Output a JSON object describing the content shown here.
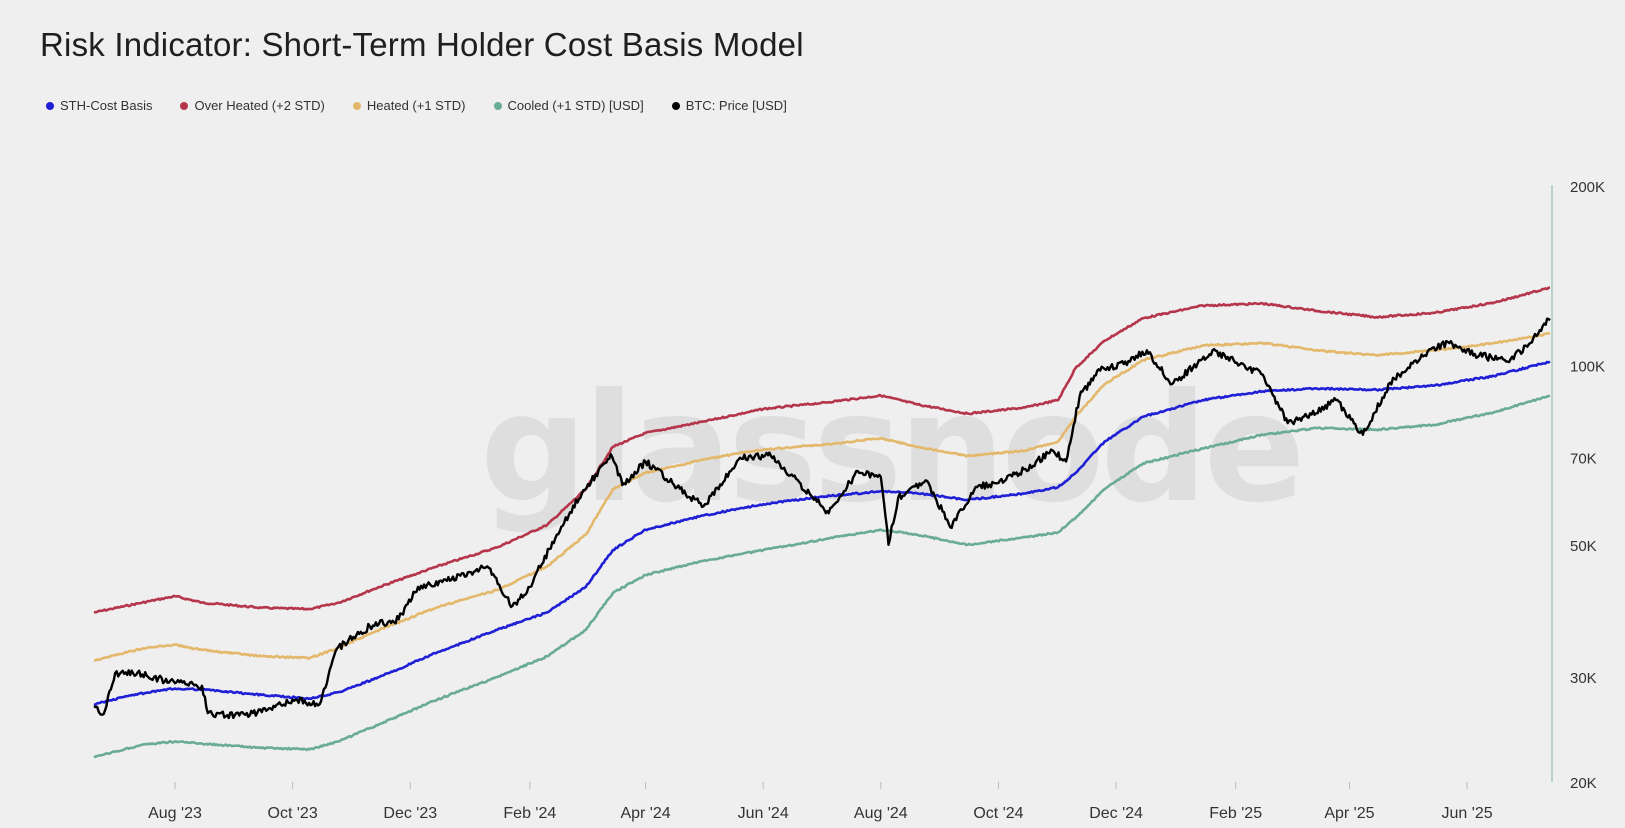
{
  "title": "Risk Indicator: Short-Term Holder Cost Basis Model",
  "watermark": "glassnode",
  "legend": [
    {
      "label": "STH-Cost Basis",
      "color": "#1f1fd6"
    },
    {
      "label": "Over Heated (+2 STD)",
      "color": "#b5354a"
    },
    {
      "label": "Heated (+1 STD)",
      "color": "#e3b86a"
    },
    {
      "label": "Cooled (+1 STD) [USD]",
      "color": "#6aab98"
    },
    {
      "label": "BTC: Price [USD]",
      "color": "#000000"
    }
  ],
  "chart_data": {
    "type": "line",
    "title": "Risk Indicator: Short-Term Holder Cost Basis Model",
    "xlabel": "",
    "ylabel": "",
    "y_scale": "log",
    "ylim": [
      20000,
      200000
    ],
    "xlim": [
      "2023-06-20",
      "2025-07-14"
    ],
    "x_ticks": [
      {
        "date": "2023-08-01",
        "label": "Aug '23"
      },
      {
        "date": "2023-10-01",
        "label": "Oct '23"
      },
      {
        "date": "2023-12-01",
        "label": "Dec '23"
      },
      {
        "date": "2024-02-01",
        "label": "Feb '24"
      },
      {
        "date": "2024-04-01",
        "label": "Apr '24"
      },
      {
        "date": "2024-06-01",
        "label": "Jun '24"
      },
      {
        "date": "2024-08-01",
        "label": "Aug '24"
      },
      {
        "date": "2024-10-01",
        "label": "Oct '24"
      },
      {
        "date": "2024-12-01",
        "label": "Dec '24"
      },
      {
        "date": "2025-02-01",
        "label": "Feb '25"
      },
      {
        "date": "2025-04-01",
        "label": "Apr '25"
      },
      {
        "date": "2025-06-01",
        "label": "Jun '25"
      }
    ],
    "y_ticks": [
      {
        "value": 20000,
        "label": "20K"
      },
      {
        "value": 30000,
        "label": "30K"
      },
      {
        "value": 50000,
        "label": "50K"
      },
      {
        "value": 70000,
        "label": "70K"
      },
      {
        "value": 100000,
        "label": "100K"
      },
      {
        "value": 200000,
        "label": "200K"
      }
    ],
    "series": [
      {
        "name": "Over Heated (+2 STD)",
        "color": "#b5354a",
        "points": [
          [
            "2023-06-20",
            38500
          ],
          [
            "2023-07-15",
            40000
          ],
          [
            "2023-08-01",
            41000
          ],
          [
            "2023-08-15",
            40000
          ],
          [
            "2023-09-15",
            39200
          ],
          [
            "2023-10-10",
            39000
          ],
          [
            "2023-10-25",
            40000
          ],
          [
            "2023-11-15",
            42500
          ],
          [
            "2023-12-15",
            46000
          ],
          [
            "2024-01-15",
            49500
          ],
          [
            "2024-02-10",
            54000
          ],
          [
            "2024-03-01",
            62000
          ],
          [
            "2024-03-15",
            73000
          ],
          [
            "2024-04-01",
            77000
          ],
          [
            "2024-05-01",
            80500
          ],
          [
            "2024-06-01",
            84500
          ],
          [
            "2024-07-01",
            86500
          ],
          [
            "2024-08-01",
            89000
          ],
          [
            "2024-08-20",
            86000
          ],
          [
            "2024-09-15",
            83000
          ],
          [
            "2024-10-15",
            85000
          ],
          [
            "2024-11-01",
            87500
          ],
          [
            "2024-11-10",
            99000
          ],
          [
            "2024-11-25",
            110000
          ],
          [
            "2024-12-15",
            120000
          ],
          [
            "2025-01-15",
            126000
          ],
          [
            "2025-02-15",
            127000
          ],
          [
            "2025-03-15",
            123500
          ],
          [
            "2025-04-15",
            120500
          ],
          [
            "2025-05-15",
            122500
          ],
          [
            "2025-06-15",
            127500
          ],
          [
            "2025-07-14",
            135000
          ]
        ]
      },
      {
        "name": "Heated (+1 STD)",
        "color": "#e3b86a",
        "points": [
          [
            "2023-06-20",
            32000
          ],
          [
            "2023-07-15",
            33500
          ],
          [
            "2023-08-01",
            34000
          ],
          [
            "2023-08-15",
            33300
          ],
          [
            "2023-09-15",
            32500
          ],
          [
            "2023-10-10",
            32300
          ],
          [
            "2023-10-25",
            33600
          ],
          [
            "2023-11-15",
            36000
          ],
          [
            "2023-12-15",
            39300
          ],
          [
            "2024-01-15",
            42000
          ],
          [
            "2024-02-10",
            46000
          ],
          [
            "2024-03-01",
            52000
          ],
          [
            "2024-03-15",
            62000
          ],
          [
            "2024-04-01",
            66000
          ],
          [
            "2024-05-01",
            69500
          ],
          [
            "2024-06-01",
            72300
          ],
          [
            "2024-07-01",
            73500
          ],
          [
            "2024-08-01",
            75500
          ],
          [
            "2024-08-20",
            73000
          ],
          [
            "2024-09-15",
            70500
          ],
          [
            "2024-10-15",
            72000
          ],
          [
            "2024-11-01",
            74500
          ],
          [
            "2024-11-10",
            82000
          ],
          [
            "2024-11-25",
            93000
          ],
          [
            "2024-12-15",
            102000
          ],
          [
            "2025-01-15",
            108000
          ],
          [
            "2025-02-15",
            109000
          ],
          [
            "2025-03-15",
            106000
          ],
          [
            "2025-04-15",
            104000
          ],
          [
            "2025-05-15",
            106000
          ],
          [
            "2025-06-15",
            109000
          ],
          [
            "2025-07-14",
            113000
          ]
        ]
      },
      {
        "name": "STH-Cost Basis",
        "color": "#1f1fd6",
        "points": [
          [
            "2023-06-20",
            27000
          ],
          [
            "2023-07-10",
            28000
          ],
          [
            "2023-08-01",
            28700
          ],
          [
            "2023-08-15",
            28600
          ],
          [
            "2023-09-15",
            28000
          ],
          [
            "2023-10-10",
            27600
          ],
          [
            "2023-10-25",
            28300
          ],
          [
            "2023-11-15",
            30000
          ],
          [
            "2023-12-15",
            33000
          ],
          [
            "2024-01-15",
            36000
          ],
          [
            "2024-02-10",
            38500
          ],
          [
            "2024-03-01",
            42500
          ],
          [
            "2024-03-15",
            49000
          ],
          [
            "2024-04-01",
            53000
          ],
          [
            "2024-05-01",
            56000
          ],
          [
            "2024-06-01",
            58500
          ],
          [
            "2024-07-01",
            60200
          ],
          [
            "2024-08-01",
            61500
          ],
          [
            "2024-08-20",
            61000
          ],
          [
            "2024-09-15",
            59500
          ],
          [
            "2024-10-15",
            61000
          ],
          [
            "2024-11-01",
            62500
          ],
          [
            "2024-11-10",
            66000
          ],
          [
            "2024-11-25",
            74500
          ],
          [
            "2024-12-15",
            82000
          ],
          [
            "2025-01-15",
            87500
          ],
          [
            "2025-02-15",
            90500
          ],
          [
            "2025-03-15",
            91500
          ],
          [
            "2025-04-15",
            91000
          ],
          [
            "2025-05-15",
            92500
          ],
          [
            "2025-06-15",
            96000
          ],
          [
            "2025-07-14",
            101500
          ]
        ]
      },
      {
        "name": "Cooled (+1 STD) [USD]",
        "color": "#6aab98",
        "points": [
          [
            "2023-06-20",
            22000
          ],
          [
            "2023-07-15",
            23100
          ],
          [
            "2023-08-01",
            23400
          ],
          [
            "2023-08-15",
            23200
          ],
          [
            "2023-09-15",
            22800
          ],
          [
            "2023-10-10",
            22700
          ],
          [
            "2023-10-25",
            23400
          ],
          [
            "2023-11-15",
            25000
          ],
          [
            "2023-12-15",
            27500
          ],
          [
            "2024-01-15",
            30000
          ],
          [
            "2024-02-10",
            32500
          ],
          [
            "2024-03-01",
            36000
          ],
          [
            "2024-03-15",
            41500
          ],
          [
            "2024-04-01",
            44500
          ],
          [
            "2024-05-01",
            47000
          ],
          [
            "2024-06-01",
            49000
          ],
          [
            "2024-07-01",
            51000
          ],
          [
            "2024-08-01",
            53000
          ],
          [
            "2024-08-20",
            52000
          ],
          [
            "2024-09-15",
            50000
          ],
          [
            "2024-10-15",
            51500
          ],
          [
            "2024-11-01",
            52500
          ],
          [
            "2024-11-10",
            55500
          ],
          [
            "2024-11-25",
            62000
          ],
          [
            "2024-12-15",
            68500
          ],
          [
            "2025-01-15",
            72500
          ],
          [
            "2025-02-15",
            76500
          ],
          [
            "2025-03-15",
            78500
          ],
          [
            "2025-04-15",
            78000
          ],
          [
            "2025-05-15",
            79500
          ],
          [
            "2025-06-15",
            83500
          ],
          [
            "2025-07-14",
            89000
          ]
        ]
      },
      {
        "name": "BTC: Price [USD]",
        "color": "#000000",
        "points": [
          [
            "2023-06-20",
            26800
          ],
          [
            "2023-06-25",
            26000
          ],
          [
            "2023-07-01",
            30500
          ],
          [
            "2023-07-15",
            30300
          ],
          [
            "2023-08-01",
            29300
          ],
          [
            "2023-08-15",
            29000
          ],
          [
            "2023-08-18",
            26100
          ],
          [
            "2023-09-01",
            25900
          ],
          [
            "2023-09-15",
            26200
          ],
          [
            "2023-10-01",
            27500
          ],
          [
            "2023-10-15",
            27000
          ],
          [
            "2023-10-24",
            33500
          ],
          [
            "2023-11-10",
            36500
          ],
          [
            "2023-11-25",
            37500
          ],
          [
            "2023-12-05",
            42500
          ],
          [
            "2023-12-20",
            43500
          ],
          [
            "2024-01-10",
            46000
          ],
          [
            "2024-01-23",
            39500
          ],
          [
            "2024-02-01",
            42500
          ],
          [
            "2024-02-15",
            52000
          ],
          [
            "2024-02-28",
            61000
          ],
          [
            "2024-03-14",
            71000
          ],
          [
            "2024-03-20",
            63000
          ],
          [
            "2024-04-01",
            69000
          ],
          [
            "2024-04-15",
            63500
          ],
          [
            "2024-05-01",
            58000
          ],
          [
            "2024-05-20",
            70000
          ],
          [
            "2024-06-05",
            70500
          ],
          [
            "2024-06-25",
            61000
          ],
          [
            "2024-07-05",
            56500
          ],
          [
            "2024-07-20",
            66500
          ],
          [
            "2024-08-01",
            65000
          ],
          [
            "2024-08-05",
            50000
          ],
          [
            "2024-08-10",
            60000
          ],
          [
            "2024-08-25",
            64000
          ],
          [
            "2024-09-06",
            53500
          ],
          [
            "2024-09-20",
            62500
          ],
          [
            "2024-10-01",
            63500
          ],
          [
            "2024-10-15",
            67000
          ],
          [
            "2024-10-29",
            72000
          ],
          [
            "2024-11-05",
            69000
          ],
          [
            "2024-11-12",
            88500
          ],
          [
            "2024-11-22",
            98500
          ],
          [
            "2024-12-05",
            100500
          ],
          [
            "2024-12-17",
            106000
          ],
          [
            "2024-12-30",
            93000
          ],
          [
            "2025-01-20",
            106000
          ],
          [
            "2025-01-31",
            102000
          ],
          [
            "2025-02-15",
            96500
          ],
          [
            "2025-02-28",
            80000
          ],
          [
            "2025-03-10",
            82000
          ],
          [
            "2025-03-25",
            87500
          ],
          [
            "2025-04-08",
            76500
          ],
          [
            "2025-04-22",
            93500
          ],
          [
            "2025-05-10",
            104000
          ],
          [
            "2025-05-22",
            109500
          ],
          [
            "2025-06-05",
            104500
          ],
          [
            "2025-06-22",
            101500
          ],
          [
            "2025-07-03",
            108500
          ],
          [
            "2025-07-11",
            117500
          ],
          [
            "2025-07-14",
            119000
          ]
        ]
      }
    ]
  }
}
